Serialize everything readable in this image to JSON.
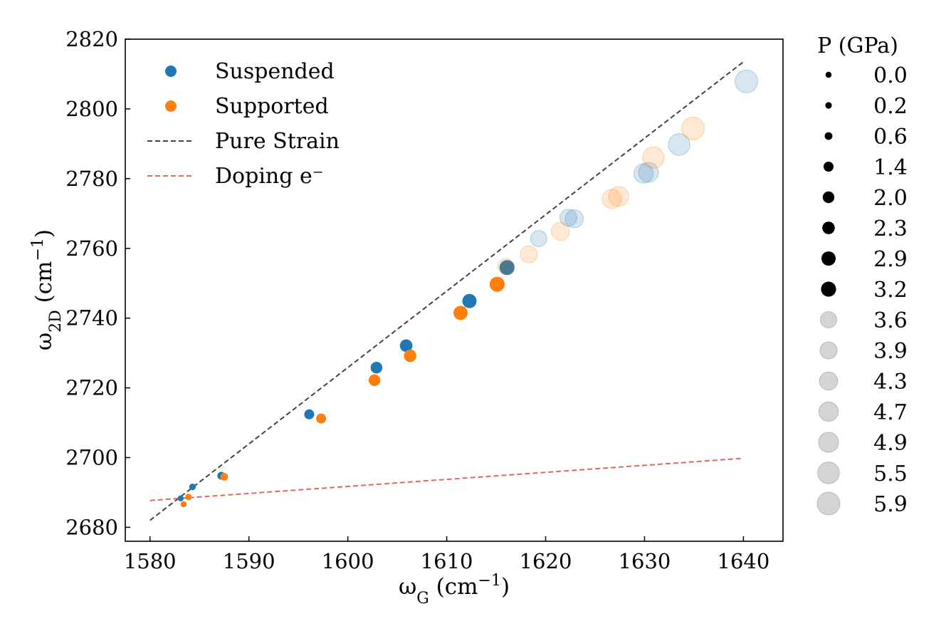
{
  "chart_data": {
    "type": "scatter",
    "xlabel": {
      "main": "ω",
      "sub": "G",
      "unit": " (cm",
      "sup": "−1",
      "close": ")"
    },
    "ylabel": {
      "main": "ω",
      "sub": "2D",
      "unit": " (cm",
      "sup": "−1",
      "close": ")"
    },
    "xlim": [
      1577.5,
      1644
    ],
    "ylim": [
      2676,
      2820
    ],
    "xticks": [
      1580,
      1590,
      1600,
      1610,
      1620,
      1630,
      1640
    ],
    "yticks": [
      2680,
      2700,
      2720,
      2740,
      2760,
      2780,
      2800,
      2820
    ],
    "series": [
      {
        "name": "Suspended",
        "color": "#1f77b4",
        "points": [
          {
            "x": 1583.1,
            "y": 2688.3,
            "p": 0.0
          },
          {
            "x": 1584.3,
            "y": 2691.6,
            "p": 0.2
          },
          {
            "x": 1587.2,
            "y": 2694.8,
            "p": 0.6
          },
          {
            "x": 1596.1,
            "y": 2712.4,
            "p": 1.4
          },
          {
            "x": 1602.9,
            "y": 2725.8,
            "p": 2.0
          },
          {
            "x": 1605.9,
            "y": 2732.1,
            "p": 2.3
          },
          {
            "x": 1612.3,
            "y": 2744.9,
            "p": 2.9
          },
          {
            "x": 1616.1,
            "y": 2754.5,
            "p": 3.2
          },
          {
            "x": 1619.3,
            "y": 2762.8,
            "p": 3.6
          },
          {
            "x": 1622.3,
            "y": 2768.8,
            "p": 3.9
          },
          {
            "x": 1622.9,
            "y": 2768.5,
            "p": 4.3
          },
          {
            "x": 1629.9,
            "y": 2781.5,
            "p": 4.7
          },
          {
            "x": 1630.4,
            "y": 2781.8,
            "p": 4.9
          },
          {
            "x": 1633.5,
            "y": 2789.8,
            "p": 5.5
          },
          {
            "x": 1640.3,
            "y": 2807.9,
            "p": 5.9
          }
        ]
      },
      {
        "name": "Supported",
        "color": "#ff7f0e",
        "points": [
          {
            "x": 1583.4,
            "y": 2686.6,
            "p": 0.0
          },
          {
            "x": 1583.9,
            "y": 2688.7,
            "p": 0.2
          },
          {
            "x": 1587.5,
            "y": 2694.5,
            "p": 0.6
          },
          {
            "x": 1597.3,
            "y": 2711.2,
            "p": 1.4
          },
          {
            "x": 1602.7,
            "y": 2722.2,
            "p": 2.0
          },
          {
            "x": 1606.3,
            "y": 2729.2,
            "p": 2.3
          },
          {
            "x": 1611.4,
            "y": 2741.5,
            "p": 2.9
          },
          {
            "x": 1615.1,
            "y": 2749.7,
            "p": 3.2
          },
          {
            "x": 1616.0,
            "y": 2754.8,
            "p": 3.6
          },
          {
            "x": 1618.3,
            "y": 2758.3,
            "p": 3.9
          },
          {
            "x": 1621.5,
            "y": 2764.9,
            "p": 4.3
          },
          {
            "x": 1626.7,
            "y": 2774.2,
            "p": 4.7
          },
          {
            "x": 1627.4,
            "y": 2774.9,
            "p": 4.9
          },
          {
            "x": 1630.9,
            "y": 2786.0,
            "p": 5.5
          },
          {
            "x": 1634.9,
            "y": 2794.4,
            "p": 5.9
          }
        ]
      }
    ],
    "lines": [
      {
        "name": "Pure Strain",
        "color": "#444444",
        "style": "dashed",
        "x": [
          1580,
          1640
        ],
        "y": [
          2682,
          2813.5
        ]
      },
      {
        "name": "Doping e⁻",
        "color": "#e06666",
        "style": "dashed",
        "x": [
          1580,
          1640
        ],
        "y": [
          2687.7,
          2699.8
        ]
      }
    ],
    "legend": {
      "entries": [
        {
          "label": "Suspended",
          "kind": "marker",
          "color": "#1f77b4"
        },
        {
          "label": "Supported",
          "kind": "marker",
          "color": "#ff7f0e"
        },
        {
          "label": "Pure Strain",
          "kind": "line",
          "color": "#444444"
        },
        {
          "label": "Doping e⁻",
          "kind": "line",
          "color": "#e06666"
        }
      ],
      "placement": "top-left"
    },
    "size_legend": {
      "title": "P (GPa)",
      "entries": [
        {
          "label": "0.0",
          "p": 0.0,
          "tone": "dark"
        },
        {
          "label": "0.2",
          "p": 0.2,
          "tone": "dark"
        },
        {
          "label": "0.6",
          "p": 0.6,
          "tone": "dark"
        },
        {
          "label": "1.4",
          "p": 1.4,
          "tone": "dark"
        },
        {
          "label": "2.0",
          "p": 2.0,
          "tone": "dark"
        },
        {
          "label": "2.3",
          "p": 2.3,
          "tone": "dark"
        },
        {
          "label": "2.9",
          "p": 2.9,
          "tone": "dark"
        },
        {
          "label": "3.2",
          "p": 3.2,
          "tone": "dark"
        },
        {
          "label": "3.6",
          "p": 3.6,
          "tone": "light"
        },
        {
          "label": "3.9",
          "p": 3.9,
          "tone": "light"
        },
        {
          "label": "4.3",
          "p": 4.3,
          "tone": "light"
        },
        {
          "label": "4.7",
          "p": 4.7,
          "tone": "light"
        },
        {
          "label": "4.9",
          "p": 4.9,
          "tone": "light"
        },
        {
          "label": "5.5",
          "p": 5.5,
          "tone": "light"
        },
        {
          "label": "5.9",
          "p": 5.9,
          "tone": "light"
        }
      ],
      "placement": "right"
    },
    "light_threshold_p": 3.3
  }
}
